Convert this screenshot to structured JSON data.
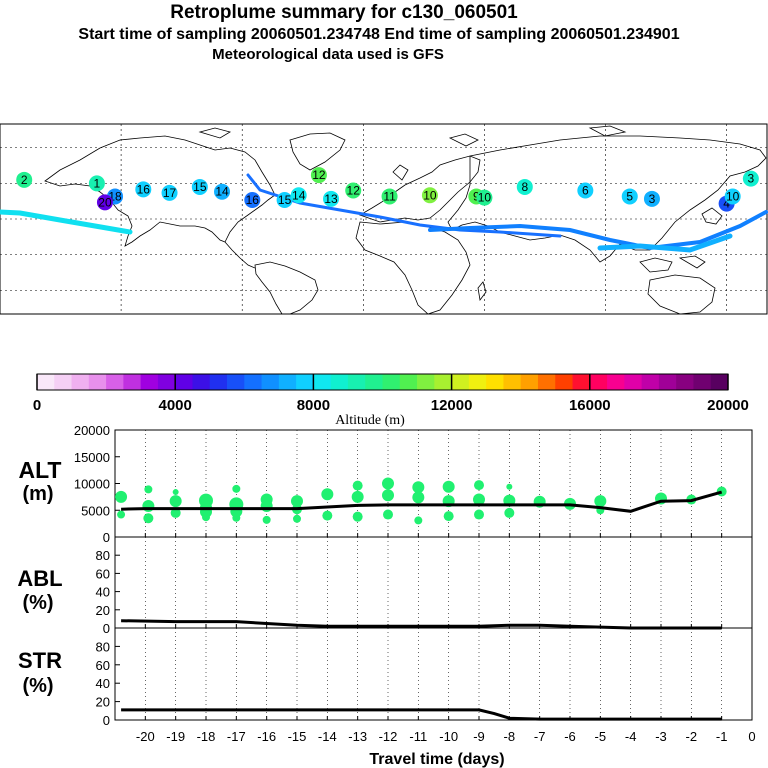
{
  "header": {
    "title": "Retroplume summary for c130_060501",
    "sampling_line": "Start time of sampling 20060501.234748     End time of sampling 20060501.234901",
    "met_line": "Meteorological data used is GFS"
  },
  "map": {
    "day_markers": [
      {
        "label": "2",
        "lon": -168,
        "lat": 33,
        "alt": 9500
      },
      {
        "label": "1",
        "lon": -132,
        "lat": 30,
        "alt": 9000
      },
      {
        "label": "18",
        "lon": -123,
        "lat": 19,
        "alt": 6500
      },
      {
        "label": "20",
        "lon": -128,
        "lat": 14,
        "alt": 4200
      },
      {
        "label": "16",
        "lon": -109,
        "lat": 25,
        "alt": 7800
      },
      {
        "label": "17",
        "lon": -96,
        "lat": 22,
        "alt": 7600
      },
      {
        "label": "15",
        "lon": -81,
        "lat": 27,
        "alt": 7700
      },
      {
        "label": "14",
        "lon": -70,
        "lat": 23,
        "alt": 7400
      },
      {
        "label": "16",
        "lon": -55,
        "lat": 16,
        "alt": 6300
      },
      {
        "label": "15",
        "lon": -39,
        "lat": 16,
        "alt": 7800
      },
      {
        "label": "14",
        "lon": -32,
        "lat": 20,
        "alt": 8300
      },
      {
        "label": "12",
        "lon": -22,
        "lat": 37,
        "alt": 10500
      },
      {
        "label": "13",
        "lon": -16,
        "lat": 17,
        "alt": 8200
      },
      {
        "label": "12",
        "lon": -5,
        "lat": 24,
        "alt": 10000
      },
      {
        "label": "11",
        "lon": 13,
        "lat": 19,
        "alt": 10300
      },
      {
        "label": "10",
        "lon": 33,
        "lat": 20,
        "alt": 11200
      },
      {
        "label": "9",
        "lon": 56,
        "lat": 19,
        "alt": 10800
      },
      {
        "label": "10",
        "lon": 60,
        "lat": 18,
        "alt": 9800
      },
      {
        "label": "8",
        "lon": 80,
        "lat": 27,
        "alt": 8500
      },
      {
        "label": "6",
        "lon": 110,
        "lat": 24,
        "alt": 7800
      },
      {
        "label": "5",
        "lon": 132,
        "lat": 19,
        "alt": 7500
      },
      {
        "label": "3",
        "lon": 143,
        "lat": 17,
        "alt": 7200
      },
      {
        "label": "4",
        "lon": 180,
        "lat": 13,
        "alt": 5500
      },
      {
        "label": "10",
        "lon": 183,
        "lat": 19,
        "alt": 7900
      },
      {
        "label": "3",
        "lon": 192,
        "lat": 34,
        "alt": 8800
      }
    ]
  },
  "colorbar": {
    "title": "Altitude (m)",
    "tick_labels": [
      "0",
      "4000",
      "8000",
      "12000",
      "16000",
      "20000"
    ],
    "min": 0,
    "max": 20000,
    "colors": [
      "#f9e8f9",
      "#f5d0f5",
      "#f0b0f0",
      "#e890ec",
      "#d860e8",
      "#c030e0",
      "#a000e0",
      "#8000e0",
      "#6000e6",
      "#3c10e6",
      "#2030f0",
      "#1850f8",
      "#1470ff",
      "#1090ff",
      "#10b0ff",
      "#10d0ff",
      "#10e8f0",
      "#10f0d0",
      "#18f0b0",
      "#20f090",
      "#30f070",
      "#50f050",
      "#80f040",
      "#a8f030",
      "#d0f020",
      "#f0f010",
      "#ffe000",
      "#ffc000",
      "#ffa000",
      "#ff7000",
      "#ff4000",
      "#ff1030",
      "#ff0060",
      "#f80090",
      "#e000a8",
      "#c000a8",
      "#a00098",
      "#880080",
      "#700070",
      "#580060"
    ]
  },
  "chart_data": [
    {
      "type": "scatter",
      "panel_label": "ALT",
      "panel_unit": "(m)",
      "ylim": [
        0,
        20000
      ],
      "yticks": [
        "0",
        "5000",
        "10000",
        "15000",
        "20000"
      ],
      "mean_line": {
        "x": [
          -20.8,
          -20,
          -19,
          -18,
          -17,
          -16,
          -15,
          -14,
          -13,
          -12,
          -11,
          -10,
          -9,
          -8,
          -7,
          -6,
          -5,
          -4,
          -3,
          -2,
          -1
        ],
        "y": [
          5200,
          5300,
          5300,
          5300,
          5300,
          5300,
          5300,
          5600,
          5900,
          6000,
          6000,
          6000,
          6000,
          6000,
          6000,
          6000,
          5500,
          4800,
          6700,
          6800,
          8400
        ]
      },
      "points": {
        "x": [
          -20.8,
          -20.8,
          -19.9,
          -19.9,
          -19.9,
          -19.0,
          -19.0,
          -19.0,
          -18.0,
          -18.0,
          -18.0,
          -18.0,
          -17.0,
          -17.0,
          -17.0,
          -17.0,
          -16.0,
          -16.0,
          -16.0,
          -15.0,
          -15.0,
          -15.0,
          -14.0,
          -14.0,
          -13.0,
          -13.0,
          -13.0,
          -12.0,
          -12.0,
          -12.0,
          -11.0,
          -11.0,
          -11.0,
          -10.0,
          -10.0,
          -10.0,
          -9.0,
          -9.0,
          -9.0,
          -8.0,
          -8.0,
          -8.0,
          -7.0,
          -6.0,
          -5.0,
          -5.0,
          -3.0,
          -2.0,
          -1.0
        ],
        "y": [
          7500,
          4200,
          8900,
          5800,
          3500,
          8400,
          6700,
          4500,
          6800,
          5500,
          4700,
          3700,
          9000,
          6100,
          4800,
          3600,
          7000,
          5800,
          3200,
          6700,
          5200,
          3400,
          8000,
          4000,
          9600,
          7500,
          3800,
          10000,
          7800,
          4200,
          9300,
          7400,
          3100,
          9400,
          6700,
          3900,
          9700,
          7000,
          4200,
          9400,
          6800,
          4500,
          6600,
          6200,
          6700,
          5000,
          7200,
          7000,
          8500
        ],
        "size": [
          6,
          4,
          4,
          6,
          5,
          3,
          6,
          5,
          7,
          6,
          6,
          4,
          4,
          7,
          6,
          4,
          6,
          6,
          4,
          6,
          5,
          4,
          6,
          5,
          5,
          6,
          5,
          6,
          6,
          5,
          6,
          6,
          4,
          6,
          6,
          5,
          5,
          6,
          5,
          3,
          6,
          5,
          6,
          6,
          6,
          4,
          6,
          5,
          5
        ]
      }
    },
    {
      "type": "line",
      "panel_label": "ABL",
      "panel_unit": "(%)",
      "ylim": [
        0,
        100
      ],
      "yticks": [
        "0",
        "20",
        "40",
        "60",
        "80"
      ],
      "x": [
        -20.8,
        -19,
        -18,
        -17,
        -16,
        -15,
        -14,
        -13,
        -12,
        -11,
        -10,
        -9,
        -8,
        -7,
        -6,
        -5,
        -4,
        -3,
        -2,
        -1
      ],
      "y": [
        8,
        7,
        7,
        7,
        5,
        3,
        2,
        2,
        2,
        2,
        2,
        2,
        3,
        3,
        2,
        1,
        0,
        0,
        0,
        0
      ]
    },
    {
      "type": "line",
      "panel_label": "STR",
      "panel_unit": "(%)",
      "ylim": [
        0,
        100
      ],
      "yticks": [
        "0",
        "20",
        "40",
        "60",
        "80"
      ],
      "xlabel": "Travel time (days)",
      "x": [
        -20.8,
        -20,
        -19,
        -18,
        -17,
        -16,
        -15,
        -14,
        -13,
        -12,
        -11,
        -10,
        -9,
        -8.5,
        -8,
        -7,
        -6,
        -5,
        -4,
        -3,
        -2,
        -1
      ],
      "y": [
        11,
        11,
        11,
        11,
        11,
        11,
        11,
        11,
        11,
        11,
        11,
        11,
        11,
        7,
        2,
        1,
        1,
        1,
        1,
        1,
        1,
        1
      ],
      "xticks": [
        "-20",
        "-19",
        "-18",
        "-17",
        "-16",
        "-15",
        "-14",
        "-13",
        "-12",
        "-11",
        "-10",
        "-9",
        "-8",
        "-7",
        "-6",
        "-5",
        "-4",
        "-3",
        "-2",
        "-1",
        "0"
      ]
    }
  ]
}
